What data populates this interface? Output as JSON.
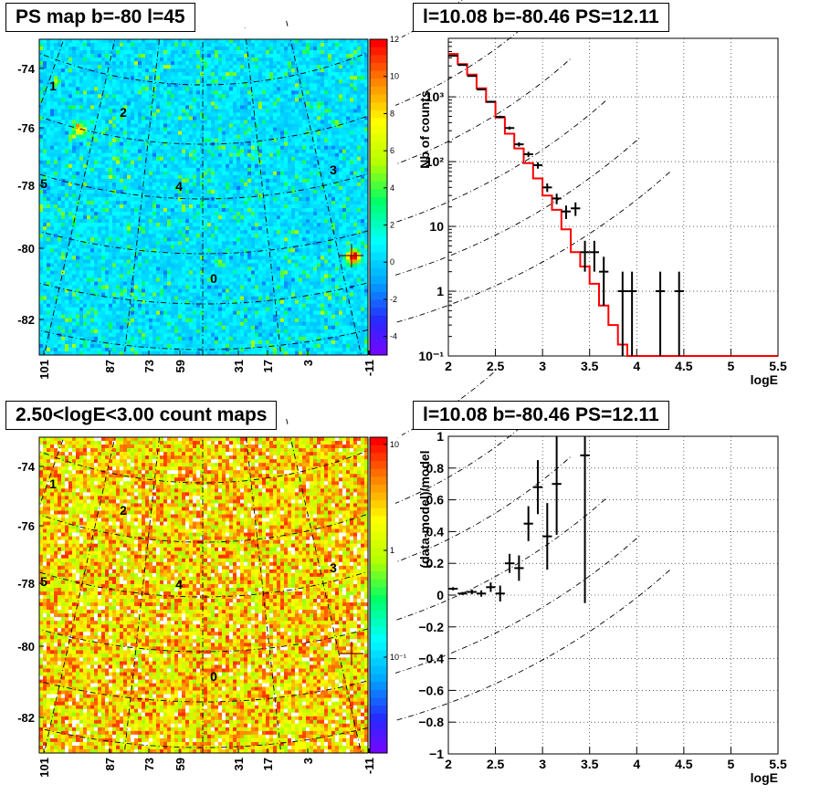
{
  "chart_data": [
    {
      "type": "heatmap",
      "title": "PS map b=-80 l=45",
      "xlabel": "",
      "ylabel": "",
      "y_ticks": [
        "-74",
        "-76",
        "-78",
        "-80",
        "-82"
      ],
      "x_ticks": [
        "101",
        "87",
        "73",
        "59",
        "31",
        "17",
        "3",
        "-11"
      ],
      "colorbar": {
        "min": -5,
        "max": 12,
        "ticks": [
          "12",
          "10",
          "8",
          "6",
          "4",
          "2",
          "0",
          "-2",
          "-4"
        ]
      },
      "grid_labels": [
        "1",
        "2",
        "3",
        "4",
        "5",
        "0"
      ],
      "hotspots": [
        {
          "l": 92,
          "b": -76.0,
          "value": 10
        },
        {
          "l": -6,
          "b": -80.0,
          "value": 12
        }
      ]
    },
    {
      "type": "line",
      "title": "l=10.08 b=-80.46 PS=12.11",
      "xlabel": "logE",
      "ylabel": "Nb of counts",
      "xlim": [
        2,
        5.5
      ],
      "ylim": [
        0.1,
        8000
      ],
      "log_y": true,
      "grid": true,
      "x_ticks": [
        "2",
        "2.5",
        "3",
        "3.5",
        "4",
        "4.5",
        "5",
        "5.5"
      ],
      "y_ticks": [
        "10⁻¹",
        "1",
        "10",
        "10²",
        "10³"
      ],
      "model_step": {
        "edges": [
          2.0,
          2.1,
          2.2,
          2.3,
          2.4,
          2.5,
          2.6,
          2.7,
          2.8,
          2.9,
          3.0,
          3.1,
          3.2,
          3.3,
          3.4,
          3.5,
          3.6,
          3.7,
          3.8,
          3.9,
          4.0,
          4.1,
          4.2,
          4.3,
          4.4,
          4.5,
          4.6,
          4.7,
          4.8,
          4.9,
          5.0,
          5.1,
          5.2,
          5.3,
          5.4,
          5.5
        ],
        "values": [
          4600,
          3200,
          2200,
          1350,
          830,
          480,
          270,
          160,
          95,
          55,
          30,
          18,
          9,
          4,
          2.4,
          1.3,
          0.6,
          0.3,
          0.15,
          0.1,
          0.1,
          0.1,
          0.1,
          0.1,
          0.1,
          0.1,
          0.1,
          0.1,
          0.1,
          0.1,
          0.1,
          0.1,
          0.1,
          0.1,
          0.1
        ]
      },
      "data_points": [
        {
          "x": 2.05,
          "y": 4300,
          "err": 60
        },
        {
          "x": 2.15,
          "y": 3100,
          "err": 55
        },
        {
          "x": 2.25,
          "y": 2100,
          "err": 45
        },
        {
          "x": 2.35,
          "y": 1300,
          "err": 35
        },
        {
          "x": 2.45,
          "y": 840,
          "err": 29
        },
        {
          "x": 2.55,
          "y": 490,
          "err": 22
        },
        {
          "x": 2.65,
          "y": 330,
          "err": 18
        },
        {
          "x": 2.75,
          "y": 185,
          "err": 14
        },
        {
          "x": 2.85,
          "y": 130,
          "err": 12
        },
        {
          "x": 2.95,
          "y": 88,
          "err": 10
        },
        {
          "x": 3.05,
          "y": 40,
          "err": 6
        },
        {
          "x": 3.15,
          "y": 27,
          "err": 5
        },
        {
          "x": 3.25,
          "y": 17,
          "err": 4
        },
        {
          "x": 3.35,
          "y": 19,
          "err": 4.5
        },
        {
          "x": 3.45,
          "y": 4,
          "err": 2
        },
        {
          "x": 3.55,
          "y": 4,
          "err": 2
        },
        {
          "x": 3.65,
          "y": 2,
          "err": 1.4
        },
        {
          "x": 3.85,
          "y": 1,
          "err": 1
        },
        {
          "x": 3.95,
          "y": 1,
          "err": 1
        },
        {
          "x": 4.25,
          "y": 1,
          "err": 1
        },
        {
          "x": 4.45,
          "y": 1,
          "err": 1
        }
      ]
    },
    {
      "type": "heatmap",
      "title": "2.50<logE<3.00 count maps",
      "xlabel": "",
      "ylabel": "",
      "y_ticks": [
        "-74",
        "-76",
        "-78",
        "-80",
        "-82"
      ],
      "x_ticks": [
        "101",
        "87",
        "73",
        "59",
        "31",
        "17",
        "3",
        "-11"
      ],
      "colorbar": {
        "log": true,
        "min": 0.02,
        "max": 12,
        "ticks": [
          "10",
          "1",
          "10⁻¹"
        ]
      },
      "grid_labels": [
        "1",
        "2",
        "3",
        "4",
        "5",
        "0"
      ]
    },
    {
      "type": "scatter",
      "title": "l=10.08 b=-80.46 PS=12.11",
      "xlabel": "logE",
      "ylabel": "(data-model)/model",
      "xlim": [
        2,
        5.5
      ],
      "ylim": [
        -1,
        1
      ],
      "grid": true,
      "x_ticks": [
        "2",
        "2.5",
        "3",
        "3.5",
        "4",
        "4.5",
        "5",
        "5.5"
      ],
      "y_ticks": [
        "1",
        "0.8",
        "0.6",
        "0.4",
        "0.2",
        "0",
        "−0.2",
        "−0.4",
        "−0.6",
        "−0.8",
        "−1"
      ],
      "data_points": [
        {
          "x": 2.05,
          "y": 0.04,
          "err": 0.01
        },
        {
          "x": 2.15,
          "y": 0.01,
          "err": 0.01
        },
        {
          "x": 2.25,
          "y": 0.02,
          "err": 0.015
        },
        {
          "x": 2.35,
          "y": 0.01,
          "err": 0.02
        },
        {
          "x": 2.45,
          "y": 0.05,
          "err": 0.03
        },
        {
          "x": 2.55,
          "y": 0.01,
          "err": 0.05
        },
        {
          "x": 2.65,
          "y": 0.2,
          "err": 0.06
        },
        {
          "x": 2.75,
          "y": 0.17,
          "err": 0.08
        },
        {
          "x": 2.85,
          "y": 0.45,
          "err": 0.11
        },
        {
          "x": 2.95,
          "y": 0.68,
          "err": 0.17
        },
        {
          "x": 3.05,
          "y": 0.37,
          "err": 0.21
        },
        {
          "x": 3.15,
          "y": 0.7,
          "err": 0.32
        },
        {
          "x": 3.45,
          "y": 0.88,
          "err": 0.93
        }
      ]
    }
  ]
}
